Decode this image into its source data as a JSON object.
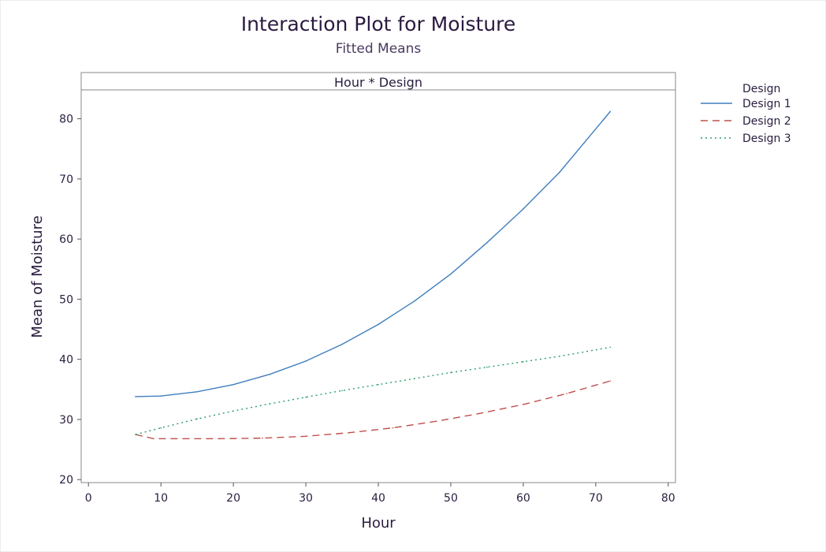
{
  "chart_data": {
    "type": "line",
    "title": "Interaction Plot for Moisture",
    "subtitle": "Fitted Means",
    "panel_label": "Hour * Design",
    "xlabel": "Hour",
    "ylabel": "Mean of Moisture",
    "xlim": [
      -1,
      81
    ],
    "ylim": [
      19.5,
      84.8
    ],
    "xticks": [
      0,
      10,
      20,
      30,
      40,
      50,
      60,
      70,
      80
    ],
    "yticks": [
      20,
      30,
      40,
      50,
      60,
      70,
      80
    ],
    "grid": false,
    "legend_title": "Design",
    "legend_position": "right",
    "series": [
      {
        "name": "Design 1",
        "color": "#3f7fbf",
        "dash": "solid",
        "x": [
          6.5,
          10,
          15,
          20,
          25,
          30,
          35,
          40,
          45,
          50,
          55,
          60,
          65,
          72
        ],
        "y": [
          33.8,
          33.9,
          34.6,
          35.8,
          37.5,
          39.7,
          42.5,
          45.8,
          49.7,
          54.2,
          59.4,
          65.0,
          71.1,
          81.2
        ]
      },
      {
        "name": "Design 2",
        "color": "#c0504d",
        "dash": "dashed",
        "x": [
          6.5,
          9,
          12,
          18,
          24,
          30,
          36,
          42,
          48,
          54,
          60,
          66,
          72
        ],
        "y": [
          27.5,
          26.8,
          26.8,
          26.8,
          26.9,
          27.2,
          27.8,
          28.6,
          29.7,
          31.0,
          32.5,
          34.3,
          36.4
        ]
      },
      {
        "name": "Design 3",
        "color": "#2e9e6a",
        "dash": "dotted",
        "x": [
          6.5,
          10,
          15,
          20,
          25,
          30,
          35,
          40,
          45,
          50,
          55,
          60,
          65,
          72
        ],
        "y": [
          27.5,
          28.6,
          30.1,
          31.4,
          32.6,
          33.7,
          34.8,
          35.8,
          36.8,
          37.8,
          38.7,
          39.6,
          40.5,
          42.0
        ]
      }
    ]
  }
}
